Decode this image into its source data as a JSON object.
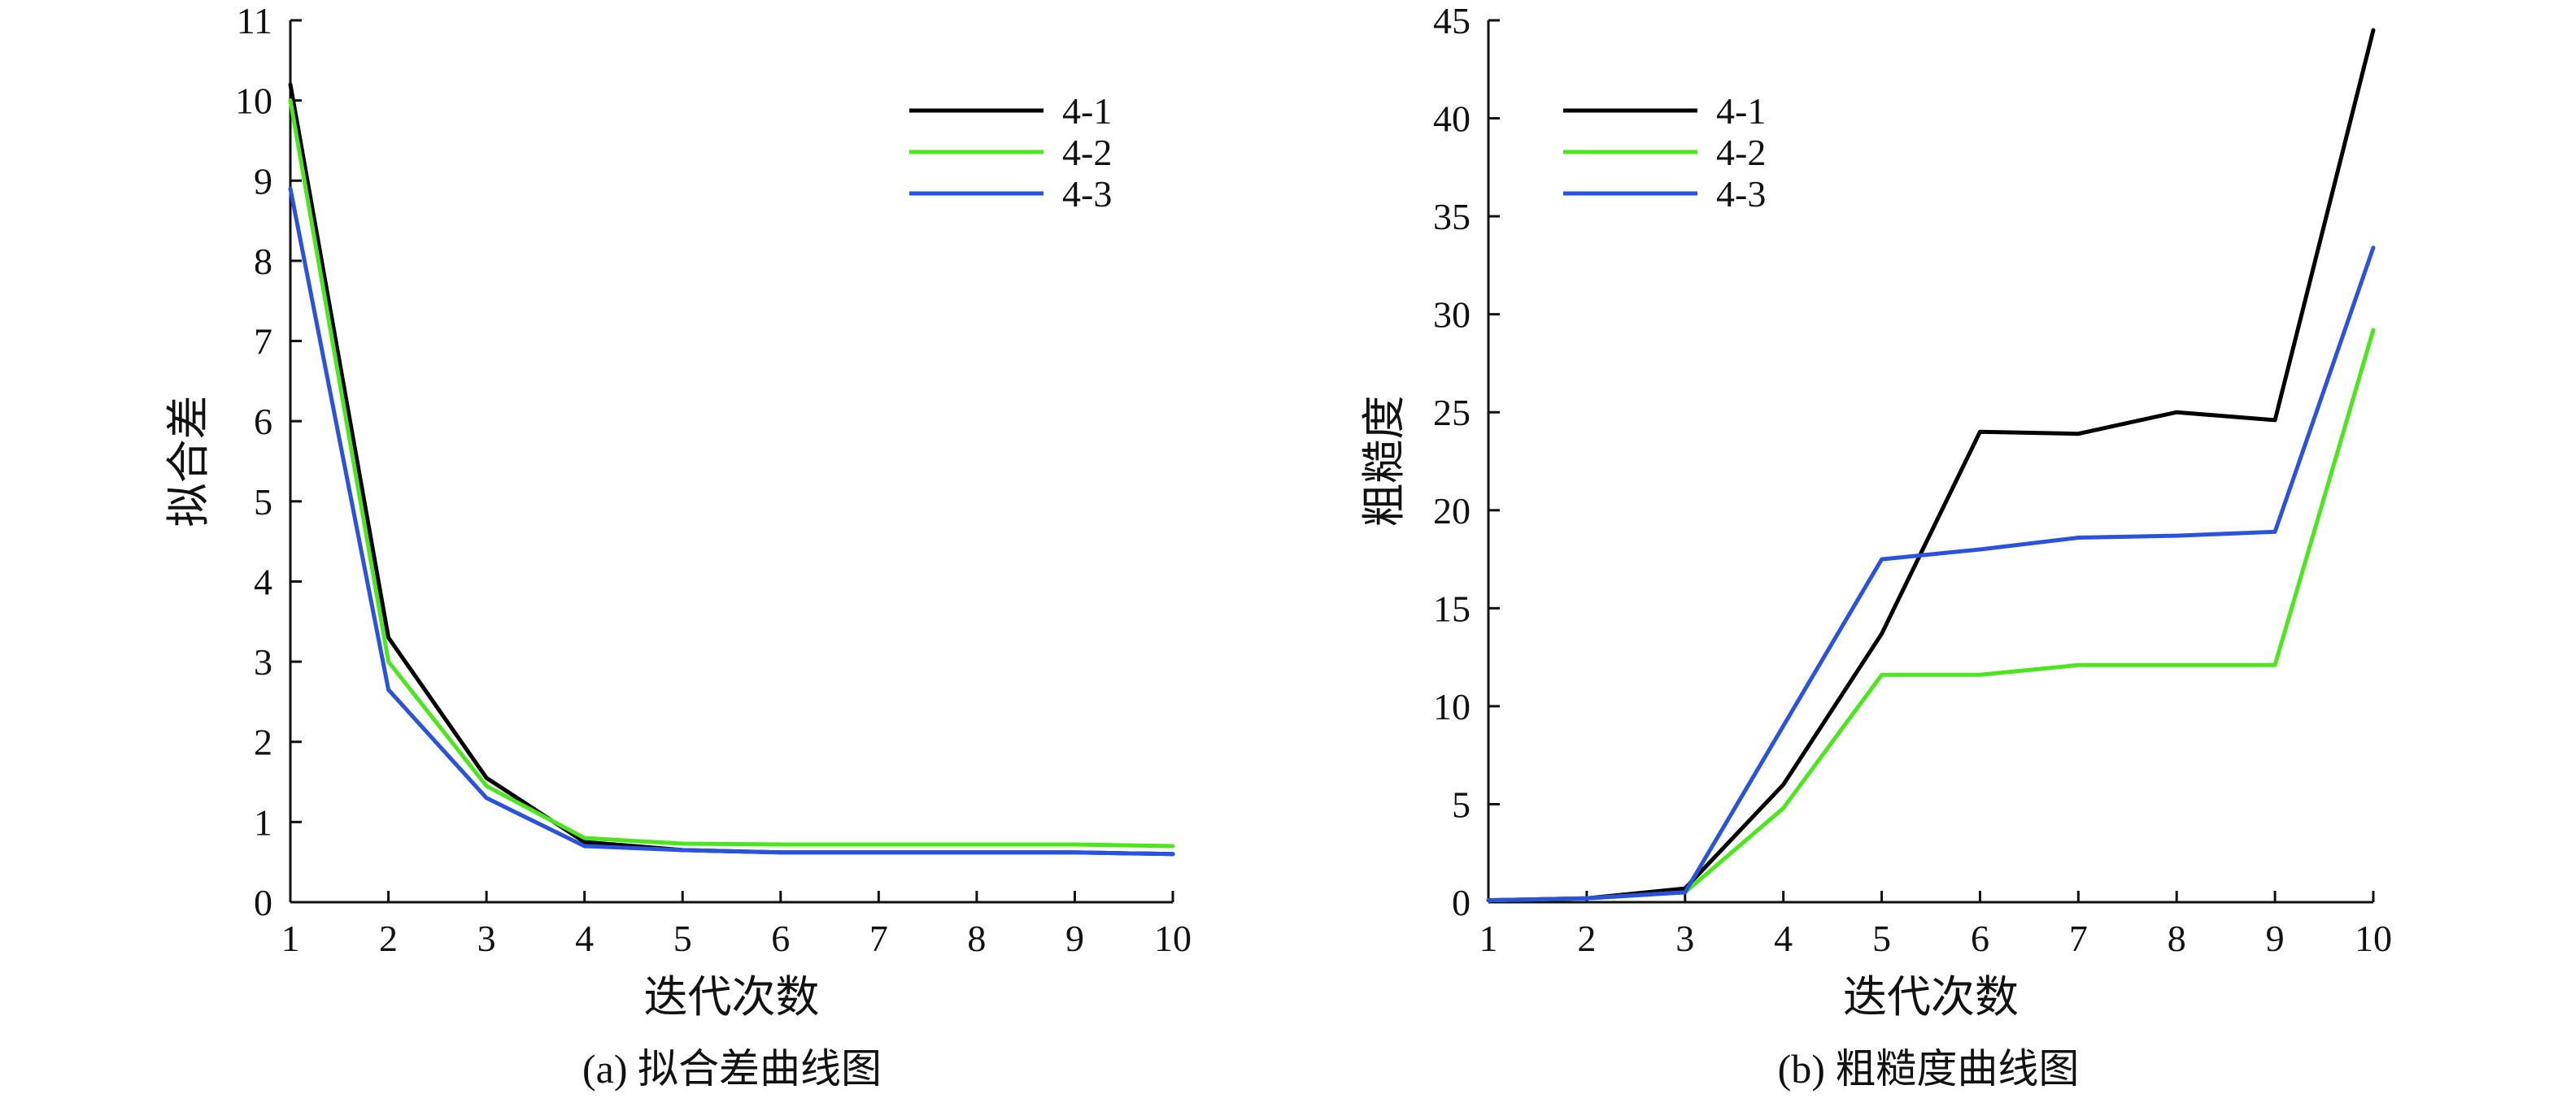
{
  "figure": {
    "caption_a": "(a) 拟合差曲线图",
    "caption_b": "(b) 粗糙度曲线图"
  },
  "colors": {
    "4-1": "#000000",
    "4-2": "#4ce61c",
    "4-3": "#2952e0"
  },
  "chart_data": [
    {
      "type": "line",
      "title": "",
      "xlabel": "迭代次数",
      "ylabel": "拟合差",
      "x": [
        1,
        2,
        3,
        4,
        5,
        6,
        7,
        8,
        9,
        10
      ],
      "xlim": [
        1,
        10
      ],
      "ylim": [
        0,
        11
      ],
      "yticks": [
        0,
        1,
        2,
        3,
        4,
        5,
        6,
        7,
        8,
        9,
        10,
        11
      ],
      "grid": false,
      "legend_position": "top-right",
      "series": [
        {
          "name": "4-1",
          "color": "#000000",
          "values": [
            10.2,
            3.3,
            1.55,
            0.75,
            0.65,
            0.62,
            0.62,
            0.62,
            0.62,
            0.6
          ]
        },
        {
          "name": "4-2",
          "color": "#4ce61c",
          "values": [
            10.0,
            3.0,
            1.45,
            0.8,
            0.73,
            0.72,
            0.72,
            0.72,
            0.72,
            0.7
          ]
        },
        {
          "name": "4-3",
          "color": "#2952e0",
          "values": [
            8.9,
            2.65,
            1.3,
            0.7,
            0.65,
            0.62,
            0.62,
            0.62,
            0.62,
            0.6
          ]
        }
      ]
    },
    {
      "type": "line",
      "title": "",
      "xlabel": "迭代次数",
      "ylabel": "粗糙度",
      "x": [
        1,
        2,
        3,
        4,
        5,
        6,
        7,
        8,
        9,
        10
      ],
      "xlim": [
        1,
        10
      ],
      "ylim": [
        0,
        45
      ],
      "yticks": [
        0,
        5,
        10,
        15,
        20,
        25,
        30,
        35,
        40,
        45
      ],
      "grid": false,
      "legend_position": "top-left",
      "series": [
        {
          "name": "4-1",
          "color": "#000000",
          "values": [
            0.1,
            0.2,
            0.7,
            6.0,
            13.7,
            24.0,
            23.9,
            25.0,
            24.6,
            44.5
          ]
        },
        {
          "name": "4-2",
          "color": "#4ce61c",
          "values": [
            0.1,
            0.2,
            0.5,
            4.8,
            11.6,
            11.6,
            12.1,
            12.1,
            12.1,
            29.2
          ]
        },
        {
          "name": "4-3",
          "color": "#2952e0",
          "values": [
            0.1,
            0.2,
            0.5,
            9.0,
            17.5,
            18.0,
            18.6,
            18.7,
            18.9,
            33.4
          ]
        }
      ]
    }
  ]
}
